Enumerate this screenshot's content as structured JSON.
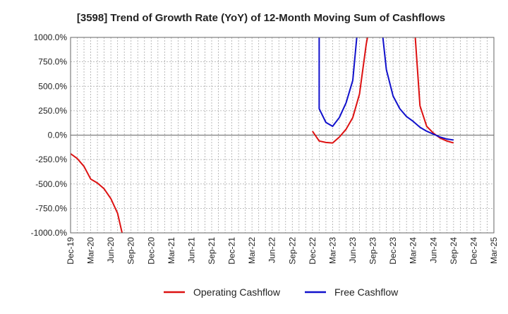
{
  "chart_data": {
    "type": "line",
    "title": "[3598]  Trend of Growth Rate (YoY) of 12-Month Moving Sum of Cashflows",
    "xlabel": "",
    "ylabel": "",
    "ylim": [
      -1000,
      1000
    ],
    "y_ticks": [
      1000,
      750,
      500,
      250,
      0,
      -250,
      -500,
      -750,
      -1000
    ],
    "y_tick_labels": [
      "1000.0%",
      "750.0%",
      "500.0%",
      "250.0%",
      "0.0%",
      "-250.0%",
      "-500.0%",
      "-750.0%",
      "-1000.0%"
    ],
    "x_tick_labels": [
      "Dec-19",
      "Mar-20",
      "Jun-20",
      "Sep-20",
      "Dec-20",
      "Mar-21",
      "Jun-21",
      "Sep-21",
      "Dec-21",
      "Mar-22",
      "Jun-22",
      "Sep-22",
      "Dec-22",
      "Mar-23",
      "Jun-23",
      "Sep-23",
      "Dec-23",
      "Mar-24",
      "Jun-24",
      "Sep-24",
      "Dec-24",
      "Mar-25"
    ],
    "grid": true,
    "legend_position": "bottom",
    "series": [
      {
        "name": "Operating Cashflow",
        "color": "#dd1111",
        "points": [
          [
            "2019-12",
            -190
          ],
          [
            "2020-01",
            -240
          ],
          [
            "2020-02",
            -320
          ],
          [
            "2020-03",
            -450
          ],
          [
            "2020-04",
            -490
          ],
          [
            "2020-05",
            -550
          ],
          [
            "2020-06",
            -650
          ],
          [
            "2020-07",
            -800
          ],
          [
            "2020-08",
            -1100
          ],
          null,
          [
            "2022-12",
            40
          ],
          [
            "2023-01",
            -60
          ],
          [
            "2023-02",
            -75
          ],
          [
            "2023-03",
            -80
          ],
          [
            "2023-04",
            -20
          ],
          [
            "2023-05",
            60
          ],
          [
            "2023-06",
            180
          ],
          [
            "2023-07",
            420
          ],
          [
            "2023-08",
            930
          ],
          [
            "2023-09",
            1300
          ],
          null,
          [
            "2024-03",
            1300
          ],
          [
            "2024-04",
            300
          ],
          [
            "2024-05",
            90
          ],
          [
            "2024-06",
            20
          ],
          [
            "2024-07",
            -30
          ],
          [
            "2024-08",
            -60
          ],
          [
            "2024-09",
            -80
          ]
        ]
      },
      {
        "name": "Free Cashflow",
        "color": "#1111cc",
        "points": [
          [
            "2023-01",
            1300
          ],
          [
            "2023-01",
            270
          ],
          [
            "2023-02",
            130
          ],
          [
            "2023-03",
            90
          ],
          [
            "2023-04",
            180
          ],
          [
            "2023-05",
            330
          ],
          [
            "2023-06",
            560
          ],
          [
            "2023-07",
            1300
          ],
          null,
          [
            "2023-10",
            1300
          ],
          [
            "2023-11",
            670
          ],
          [
            "2023-12",
            400
          ],
          [
            "2024-01",
            270
          ],
          [
            "2024-02",
            190
          ],
          [
            "2024-03",
            140
          ],
          [
            "2024-04",
            80
          ],
          [
            "2024-05",
            40
          ],
          [
            "2024-06",
            10
          ],
          [
            "2024-07",
            -20
          ],
          [
            "2024-08",
            -40
          ],
          [
            "2024-09",
            -50
          ]
        ]
      }
    ]
  }
}
